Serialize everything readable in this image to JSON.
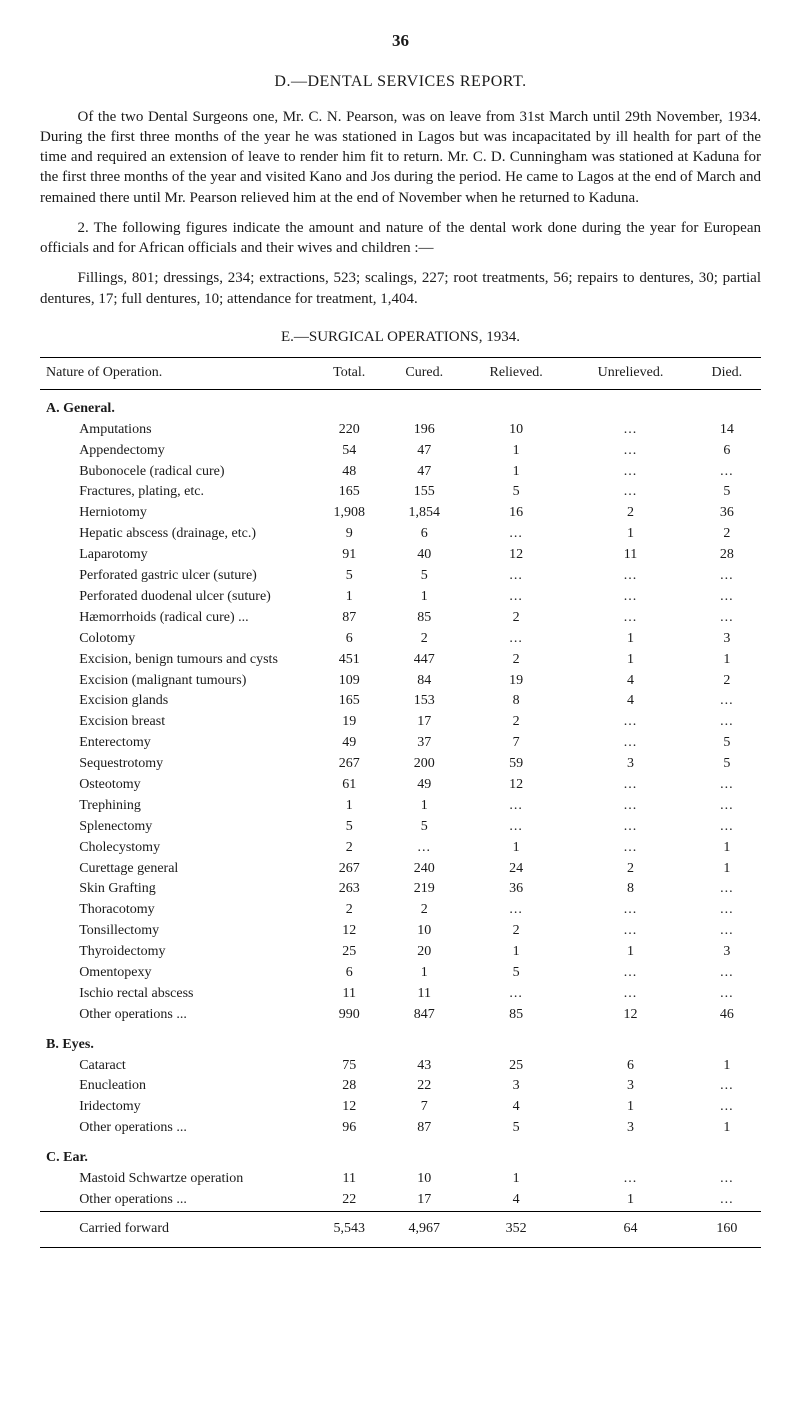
{
  "page_number": "36",
  "section_heading": "D.—DENTAL SERVICES REPORT.",
  "paragraphs": {
    "p1": "Of the two Dental Surgeons one, Mr. C. N. Pearson, was on leave from 31st March until 29th November, 1934. During the first three months of the year he was stationed in Lagos but was incapacitated by ill health for part of the time and required an extension of leave to render him fit to return. Mr. C. D. Cunningham was stationed at Kaduna for the first three months of the year and visited Kano and Jos during the period. He came to Lagos at the end of March and remained there until Mr. Pearson relieved him at the end of November when he returned to Kaduna.",
    "p2": "2. The following figures indicate the amount and nature of the dental work done during the year for European officials and for African officials and their wives and children :—",
    "p3": "Fillings, 801; dressings, 234; extractions, 523; scalings, 227; root treatments, 56; repairs to dentures, 30; partial dentures, 17; full dentures, 10; attendance for treatment, 1,404."
  },
  "table_heading": "E.—SURGICAL OPERATIONS, 1934.",
  "columns": {
    "nature": "Nature of Operation.",
    "total": "Total.",
    "cured": "Cured.",
    "relieved": "Relieved.",
    "unrelieved": "Unrelieved.",
    "died": "Died."
  },
  "groups": [
    {
      "label": "A.  General.",
      "rows": [
        {
          "n": "Amputations",
          "t": "220",
          "c": "196",
          "r": "10",
          "u": "...",
          "d": "14"
        },
        {
          "n": "Appendectomy",
          "t": "54",
          "c": "47",
          "r": "1",
          "u": "...",
          "d": "6"
        },
        {
          "n": "Bubonocele (radical cure)",
          "t": "48",
          "c": "47",
          "r": "1",
          "u": "...",
          "d": "..."
        },
        {
          "n": "Fractures, plating, etc.",
          "t": "165",
          "c": "155",
          "r": "5",
          "u": "...",
          "d": "5"
        },
        {
          "n": "Herniotomy",
          "t": "1,908",
          "c": "1,854",
          "r": "16",
          "u": "2",
          "d": "36"
        },
        {
          "n": "Hepatic abscess (drainage, etc.)",
          "t": "9",
          "c": "6",
          "r": "...",
          "u": "1",
          "d": "2"
        },
        {
          "n": "Laparotomy",
          "t": "91",
          "c": "40",
          "r": "12",
          "u": "11",
          "d": "28"
        },
        {
          "n": "Perforated gastric ulcer (suture)",
          "t": "5",
          "c": "5",
          "r": "...",
          "u": "...",
          "d": "..."
        },
        {
          "n": "Perforated duodenal ulcer (suture)",
          "t": "1",
          "c": "1",
          "r": "...",
          "u": "...",
          "d": "..."
        },
        {
          "n": "Hæmorrhoids (radical cure) ...",
          "t": "87",
          "c": "85",
          "r": "2",
          "u": "...",
          "d": "..."
        },
        {
          "n": "Colotomy",
          "t": "6",
          "c": "2",
          "r": "...",
          "u": "1",
          "d": "3"
        },
        {
          "n": "Excision, benign tumours and cysts",
          "t": "451",
          "c": "447",
          "r": "2",
          "u": "1",
          "d": "1"
        },
        {
          "n": "Excision (malignant tumours)",
          "t": "109",
          "c": "84",
          "r": "19",
          "u": "4",
          "d": "2"
        },
        {
          "n": "Excision glands",
          "t": "165",
          "c": "153",
          "r": "8",
          "u": "4",
          "d": "..."
        },
        {
          "n": "Excision breast",
          "t": "19",
          "c": "17",
          "r": "2",
          "u": "...",
          "d": "..."
        },
        {
          "n": "Enterectomy",
          "t": "49",
          "c": "37",
          "r": "7",
          "u": "...",
          "d": "5"
        },
        {
          "n": "Sequestrotomy",
          "t": "267",
          "c": "200",
          "r": "59",
          "u": "3",
          "d": "5"
        },
        {
          "n": "Osteotomy",
          "t": "61",
          "c": "49",
          "r": "12",
          "u": "...",
          "d": "..."
        },
        {
          "n": "Trephining",
          "t": "1",
          "c": "1",
          "r": "...",
          "u": "...",
          "d": "..."
        },
        {
          "n": "Splenectomy",
          "t": "5",
          "c": "5",
          "r": "...",
          "u": "...",
          "d": "..."
        },
        {
          "n": "Cholecystomy",
          "t": "2",
          "c": "...",
          "r": "1",
          "u": "...",
          "d": "1"
        },
        {
          "n": "Curettage general",
          "t": "267",
          "c": "240",
          "r": "24",
          "u": "2",
          "d": "1"
        },
        {
          "n": "Skin Grafting",
          "t": "263",
          "c": "219",
          "r": "36",
          "u": "8",
          "d": "..."
        },
        {
          "n": "Thoracotomy",
          "t": "2",
          "c": "2",
          "r": "...",
          "u": "...",
          "d": "..."
        },
        {
          "n": "Tonsillectomy",
          "t": "12",
          "c": "10",
          "r": "2",
          "u": "...",
          "d": "..."
        },
        {
          "n": "Thyroidectomy",
          "t": "25",
          "c": "20",
          "r": "1",
          "u": "1",
          "d": "3"
        },
        {
          "n": "Omentopexy",
          "t": "6",
          "c": "1",
          "r": "5",
          "u": "...",
          "d": "..."
        },
        {
          "n": "Ischio rectal abscess",
          "t": "11",
          "c": "11",
          "r": "...",
          "u": "...",
          "d": "..."
        },
        {
          "n": "Other operations ...",
          "t": "990",
          "c": "847",
          "r": "85",
          "u": "12",
          "d": "46"
        }
      ]
    },
    {
      "label": "B.  Eyes.",
      "rows": [
        {
          "n": "Cataract",
          "t": "75",
          "c": "43",
          "r": "25",
          "u": "6",
          "d": "1"
        },
        {
          "n": "Enucleation",
          "t": "28",
          "c": "22",
          "r": "3",
          "u": "3",
          "d": "..."
        },
        {
          "n": "Iridectomy",
          "t": "12",
          "c": "7",
          "r": "4",
          "u": "1",
          "d": "..."
        },
        {
          "n": "Other operations ...",
          "t": "96",
          "c": "87",
          "r": "5",
          "u": "3",
          "d": "1"
        }
      ]
    },
    {
      "label": "C.  Ear.",
      "rows": [
        {
          "n": "Mastoid Schwartze operation",
          "t": "11",
          "c": "10",
          "r": "1",
          "u": "...",
          "d": "..."
        },
        {
          "n": "Other operations ...",
          "t": "22",
          "c": "17",
          "r": "4",
          "u": "1",
          "d": "..."
        }
      ]
    }
  ],
  "carried_forward": {
    "label": "Carried forward",
    "t": "5,543",
    "c": "4,967",
    "r": "352",
    "u": "64",
    "d": "160"
  }
}
